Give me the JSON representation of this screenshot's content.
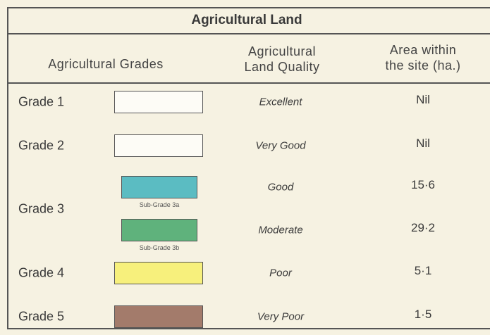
{
  "title": "Agricultural Land",
  "headers": [
    [
      "Agricultural Grades"
    ],
    [
      "Agricultural",
      "Land Quality"
    ],
    [
      "Area within",
      "the site (ha.)"
    ]
  ],
  "rows": [
    {
      "grade": "Grade 1",
      "classes": [
        {
          "color": "#fdfcf6",
          "quality": "Excellent",
          "area": "Nil"
        }
      ]
    },
    {
      "grade": "Grade 2",
      "classes": [
        {
          "color": "#fdfcf6",
          "quality": "Very Good",
          "area": "Nil"
        }
      ]
    },
    {
      "grade": "Grade 3",
      "classes": [
        {
          "color": "#5bbcc2",
          "sub_label": "Sub-Grade 3a",
          "quality": "Good",
          "area": "15·6"
        },
        {
          "color": "#5fb27c",
          "sub_label": "Sub-Grade 3b",
          "quality": "Moderate",
          "area": "29·2"
        }
      ]
    },
    {
      "grade": "Grade 4",
      "classes": [
        {
          "color": "#f7f07c",
          "quality": "Poor",
          "area": "5·1"
        }
      ]
    },
    {
      "grade": "Grade 5",
      "classes": [
        {
          "color": "#a37b6b",
          "quality": "Very Poor",
          "area": "1·5"
        }
      ]
    }
  ]
}
